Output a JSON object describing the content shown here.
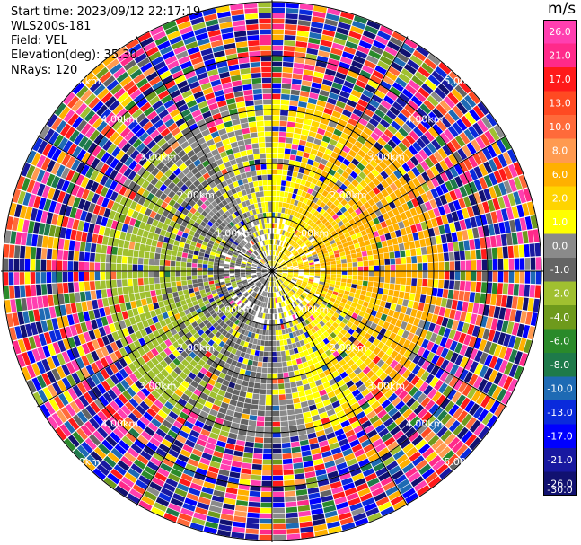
{
  "header": {
    "start_time": "Start time: 2023/09/12 22:17:19",
    "instrument": "WLS200s-181",
    "field": "Field: VEL",
    "elevation": "Elevation(deg): 35.30",
    "nrays": "NRays: 120"
  },
  "colorbar": {
    "unit": "m/s",
    "levels": [
      26.0,
      21.0,
      17.0,
      13.0,
      10.0,
      8.0,
      6.0,
      2.0,
      1.0,
      0.0,
      -1.0,
      -2.0,
      -4.0,
      -6.0,
      -8.0,
      -10.0,
      -13.0,
      -17.0,
      -21.0,
      -26.0,
      -30.0
    ],
    "labels": [
      "26.0",
      "21.0",
      "17.0",
      "13.0",
      "10.0",
      "8.0",
      "6.0",
      "2.0",
      "1.0",
      "0.0",
      "-1.0",
      "-2.0",
      "-4.0",
      "-6.0",
      "-8.0",
      "-10.0",
      "-13.0",
      "-17.0",
      "-21.0",
      "-26.0",
      "-30.0"
    ],
    "colors": [
      "#ff3fb0",
      "#ff2a8a",
      "#ff1a1a",
      "#ff4a22",
      "#ff6a3a",
      "#ff9a50",
      "#ffb000",
      "#ffd400",
      "#ffff00",
      "#8a8a8a",
      "#646464",
      "#a0c030",
      "#6e9a1c",
      "#2a8a2a",
      "#1e7a4a",
      "#1e6ab4",
      "#0a2adc",
      "#0000ff",
      "#1818a0",
      "#111170"
    ]
  },
  "chart_data": {
    "type": "ppi",
    "field": "VEL",
    "units": "m/s",
    "rays": 120,
    "range_ring_labels": [
      "1.00km",
      "2.00km",
      "3.00km",
      "4.00km",
      "5.00km"
    ],
    "rings_km": [
      1,
      2,
      3,
      4,
      5
    ],
    "vmin": -30,
    "vmax": 26
  }
}
